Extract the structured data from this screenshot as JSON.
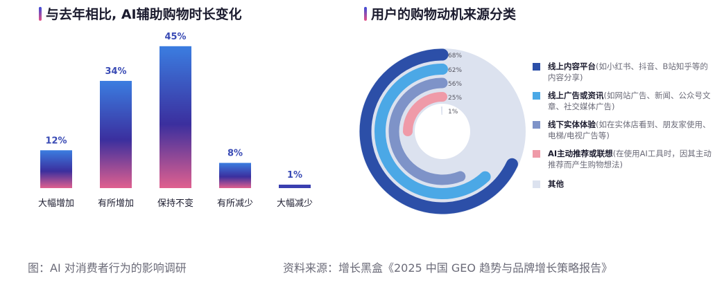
{
  "chart_data": [
    {
      "type": "bar",
      "title": "与去年相比, AI辅助购物时长变化",
      "categories": [
        "大幅增加",
        "有所增加",
        "保持不变",
        "有所减少",
        "大幅减少"
      ],
      "values": [
        12,
        34,
        45,
        8,
        1
      ],
      "value_labels": [
        "12%",
        "34%",
        "45%",
        "8%",
        "1%"
      ],
      "ylim": [
        0,
        50
      ],
      "grid": false,
      "colors": {
        "top": "#3b7de0",
        "middle": "#3b2f9e",
        "bottom": "#e0608f",
        "small_bar": "#3a3fb0"
      }
    },
    {
      "type": "pie",
      "title": "用户的购物动机来源分类",
      "categories": [
        "线上内容平台",
        "线上广告或资讯",
        "线下实体体验",
        "AI主动推荐或联想",
        "其他"
      ],
      "values": [
        68,
        62,
        56,
        25,
        1
      ],
      "value_labels": [
        "68%",
        "62%",
        "56%",
        "25%",
        "1%"
      ],
      "descriptions": [
        "(如小红书、抖音、B站知乎等的内容分享)",
        "(如网站广告、新闻、公众号文章、社交媒体广告)",
        "(如在实体店看到、朋友家使用、电梯/电视广告等)",
        "(在使用AI工具时，因其主动推荐而产生购物想法)",
        ""
      ],
      "colors": [
        "#2c4fa8",
        "#4ba8e6",
        "#7e93c8",
        "#ef9aa8",
        "#dce2ef"
      ],
      "legend_position": "right"
    }
  ],
  "captions": {
    "left": "图：AI 对消费者行为的影响调研",
    "right": "资料来源：增长黑盒《2025 中国 GEO 趋势与品牌增长策略报告》"
  }
}
